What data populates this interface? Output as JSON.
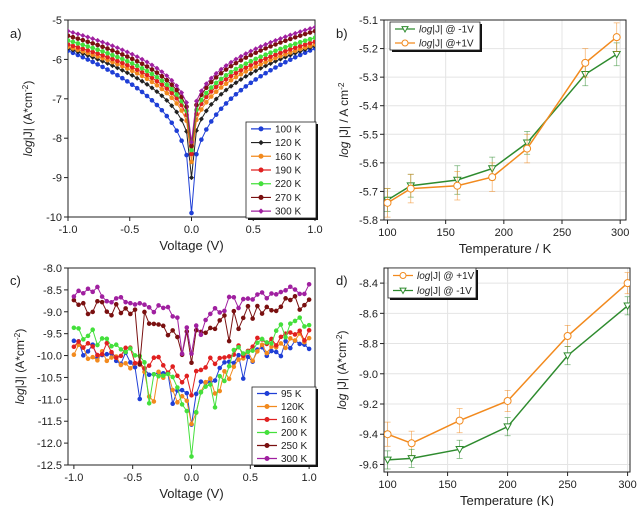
{
  "chart_data": [
    {
      "panel_label": "a)",
      "type": "line",
      "xlabel": "Voltage (V)",
      "ylabel": "log|J| (A*cm⁻²)",
      "ylabel_parts": [
        "log",
        "|J| (A*cm",
        "-2",
        ")"
      ],
      "xlim": [
        -1.0,
        1.0
      ],
      "ylim": [
        -10,
        -5
      ],
      "xticks": [
        -1.0,
        -0.5,
        0.0,
        0.5,
        1.0
      ],
      "xtick_labels": [
        "-1.0",
        "-0.5",
        "0.0",
        "0.5",
        "1.0"
      ],
      "yticks": [
        -10,
        -9,
        -8,
        -7,
        -6,
        -5
      ],
      "ytick_labels": [
        "-10",
        "-9",
        "-8",
        "-7",
        "-6",
        "-5"
      ],
      "legend_position": "bottom-right",
      "series": [
        {
          "name": "100 K",
          "color": "#1f3fd6",
          "marker": "circle",
          "end_neg": -5.78,
          "end_pos": -5.72,
          "min": -9.9
        },
        {
          "name": "120 K",
          "color": "#222222",
          "marker": "diamond",
          "end_neg": -5.72,
          "end_pos": -5.66,
          "min": -9.0
        },
        {
          "name": "160 K",
          "color": "#f28a1e",
          "marker": "circle",
          "end_neg": -5.68,
          "end_pos": -5.62,
          "min": -8.6
        },
        {
          "name": "190 K",
          "color": "#e02020",
          "marker": "circle",
          "end_neg": -5.62,
          "end_pos": -5.55,
          "min": -8.4
        },
        {
          "name": "220 K",
          "color": "#44e03c",
          "marker": "circle",
          "end_neg": -5.52,
          "end_pos": -5.45,
          "min": -8.3
        },
        {
          "name": "270 K",
          "color": "#7a1010",
          "marker": "circle",
          "end_neg": -5.4,
          "end_pos": -5.28,
          "min": -8.2
        },
        {
          "name": "300 K",
          "color": "#a020a0",
          "marker": "diamond",
          "end_neg": -5.28,
          "end_pos": -5.18,
          "min": -8.1
        }
      ]
    },
    {
      "panel_label": "b)",
      "type": "line",
      "xlabel": "Temperature / K",
      "ylabel": "log |J| / A cm⁻²",
      "ylabel_parts": [
        "log",
        " |J| / A cm",
        "-2",
        ""
      ],
      "xlim": [
        97,
        305
      ],
      "ylim": [
        -5.8,
        -5.1
      ],
      "xticks": [
        100,
        150,
        200,
        250,
        300
      ],
      "xtick_labels": [
        "100",
        "150",
        "200",
        "250",
        "300"
      ],
      "yticks": [
        -5.8,
        -5.7,
        -5.6,
        -5.5,
        -5.4,
        -5.3,
        -5.2,
        -5.1
      ],
      "ytick_labels": [
        "-5.8",
        "-5.7",
        "-5.6",
        "-5.5",
        "-5.4",
        "-5.3",
        "-5.2",
        "-5.1"
      ],
      "legend_position": "top-left",
      "x": [
        100,
        120,
        160,
        190,
        220,
        270,
        297
      ],
      "series": [
        {
          "name": "log|J| @ -1V",
          "name_parts": [
            "log",
            "|J| @ -1V"
          ],
          "color": "#2e8b2e",
          "marker": "triangle-down",
          "values": [
            -5.73,
            -5.68,
            -5.66,
            -5.62,
            -5.53,
            -5.29,
            -5.22
          ],
          "errors": [
            0.04,
            0.04,
            0.05,
            0.04,
            0.04,
            0.04,
            0.04
          ]
        },
        {
          "name": "log|J| @+1V",
          "name_parts": [
            "log",
            "|J| @+1V"
          ],
          "color": "#f28a1e",
          "marker": "circle",
          "values": [
            -5.74,
            -5.69,
            -5.68,
            -5.65,
            -5.55,
            -5.25,
            -5.16
          ],
          "errors": [
            0.05,
            0.05,
            0.05,
            0.05,
            0.05,
            0.05,
            0.05
          ]
        }
      ]
    },
    {
      "panel_label": "c)",
      "type": "line",
      "xlabel": "Voltage (V)",
      "ylabel": "log|J| (A*cm⁻²)",
      "ylabel_parts": [
        "log",
        "|J| (A*cm",
        "-2",
        ")"
      ],
      "xlim": [
        -1.05,
        1.05
      ],
      "ylim": [
        -12.5,
        -8.0
      ],
      "xticks": [
        -1.0,
        -0.5,
        0.0,
        0.5,
        1.0
      ],
      "xtick_labels": [
        "-1.0",
        "-0.5",
        "0.0",
        "0.5",
        "1.0"
      ],
      "yticks": [
        -12.5,
        -12.0,
        -11.5,
        -11.0,
        -10.5,
        -10.0,
        -9.5,
        -9.0,
        -8.5,
        -8.0
      ],
      "ytick_labels": [
        "-12.5",
        "-12.0",
        "-11.5",
        "-11.0",
        "-10.5",
        "-10.0",
        "-9.5",
        "-9.0",
        "-8.5",
        "-8.0"
      ],
      "legend_position": "bottom-right",
      "series": [
        {
          "name": "95 K",
          "color": "#1f3fd6",
          "marker": "circle",
          "end_neg": -9.8,
          "end_pos": -9.7,
          "min": -11.5
        },
        {
          "name": "120K",
          "color": "#f28a1e",
          "marker": "circle",
          "end_neg": -9.85,
          "end_pos": -9.6,
          "min": -11.6
        },
        {
          "name": "160 K",
          "color": "#e02020",
          "marker": "circle",
          "end_neg": -9.75,
          "end_pos": -9.5,
          "min": -11.0
        },
        {
          "name": "200 K",
          "color": "#44e03c",
          "marker": "circle",
          "end_neg": -9.4,
          "end_pos": -9.2,
          "min": -12.2
        },
        {
          "name": "250 K",
          "color": "#7a1010",
          "marker": "circle",
          "end_neg": -8.85,
          "end_pos": -8.75,
          "min": -10.0
        },
        {
          "name": "300 K",
          "color": "#a020a0",
          "marker": "circle",
          "end_neg": -8.5,
          "end_pos": -8.4,
          "min": -9.8
        }
      ]
    },
    {
      "panel_label": "d)",
      "type": "line",
      "xlabel": "Temperature (K)",
      "ylabel": "log |J| (A*cm⁻²)",
      "ylabel_parts": [
        "log",
        " |J| (A*cm",
        "-2",
        ")"
      ],
      "xlim": [
        97,
        302
      ],
      "ylim": [
        -9.65,
        -8.3
      ],
      "xticks": [
        100,
        150,
        200,
        250,
        300
      ],
      "xtick_labels": [
        "100",
        "150",
        "200",
        "250",
        "300"
      ],
      "yticks": [
        -9.6,
        -9.4,
        -9.2,
        -9.0,
        -8.8,
        -8.6,
        -8.4
      ],
      "ytick_labels": [
        "-9.6",
        "-9.4",
        "-9.2",
        "-9.0",
        "-8.8",
        "-8.6",
        "-8.4"
      ],
      "legend_position": "top-left",
      "x": [
        100,
        120,
        160,
        200,
        250,
        300
      ],
      "series": [
        {
          "name": "log|J| @ +1V",
          "name_parts": [
            "log",
            "|J| @ +1V"
          ],
          "color": "#f28a1e",
          "marker": "circle",
          "values": [
            -9.4,
            -9.46,
            -9.31,
            -9.18,
            -8.75,
            -8.4
          ],
          "errors": [
            0.08,
            0.08,
            0.08,
            0.07,
            0.07,
            0.07
          ]
        },
        {
          "name": "log|J| @ -1V",
          "name_parts": [
            "log",
            "|J| @ -1V"
          ],
          "color": "#2e8b2e",
          "marker": "triangle-down",
          "values": [
            -9.57,
            -9.56,
            -9.5,
            -9.35,
            -8.88,
            -8.55
          ],
          "errors": [
            0.06,
            0.06,
            0.06,
            0.06,
            0.06,
            0.06
          ]
        }
      ]
    }
  ]
}
